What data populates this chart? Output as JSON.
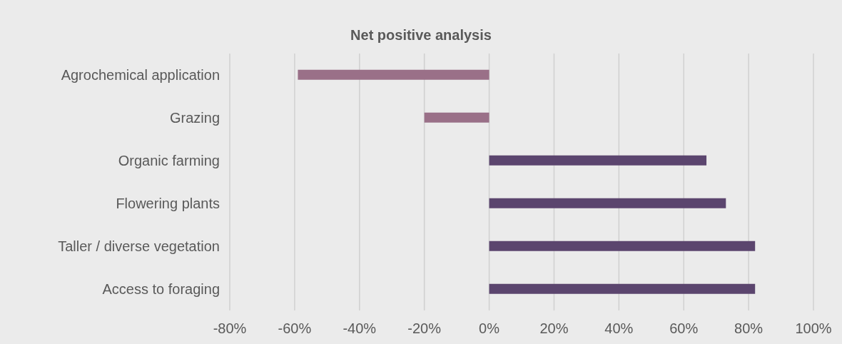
{
  "chart_data": {
    "type": "bar",
    "orientation": "horizontal",
    "title": "Net positive analysis",
    "categories": [
      "Agrochemical application",
      "Grazing",
      "Organic farming",
      "Flowering plants",
      "Taller / diverse vegetation",
      "Access to foraging"
    ],
    "values": [
      -59,
      -20,
      67,
      73,
      82,
      82
    ],
    "colors": [
      "#9a7088",
      "#9a7088",
      "#5b456e",
      "#5b456e",
      "#5b456e",
      "#5b456e"
    ],
    "xlim": [
      -80,
      100
    ],
    "xticks": [
      {
        "value": -80,
        "label": "-80%"
      },
      {
        "value": -60,
        "label": "-60%"
      },
      {
        "value": -40,
        "label": "-40%"
      },
      {
        "value": -20,
        "label": "-20%"
      },
      {
        "value": 0,
        "label": "0%"
      },
      {
        "value": 20,
        "label": "20%"
      },
      {
        "value": 40,
        "label": "40%"
      },
      {
        "value": 60,
        "label": "60%"
      },
      {
        "value": 80,
        "label": "80%"
      },
      {
        "value": 100,
        "label": "100%"
      }
    ],
    "grid": "x",
    "legend": false
  }
}
